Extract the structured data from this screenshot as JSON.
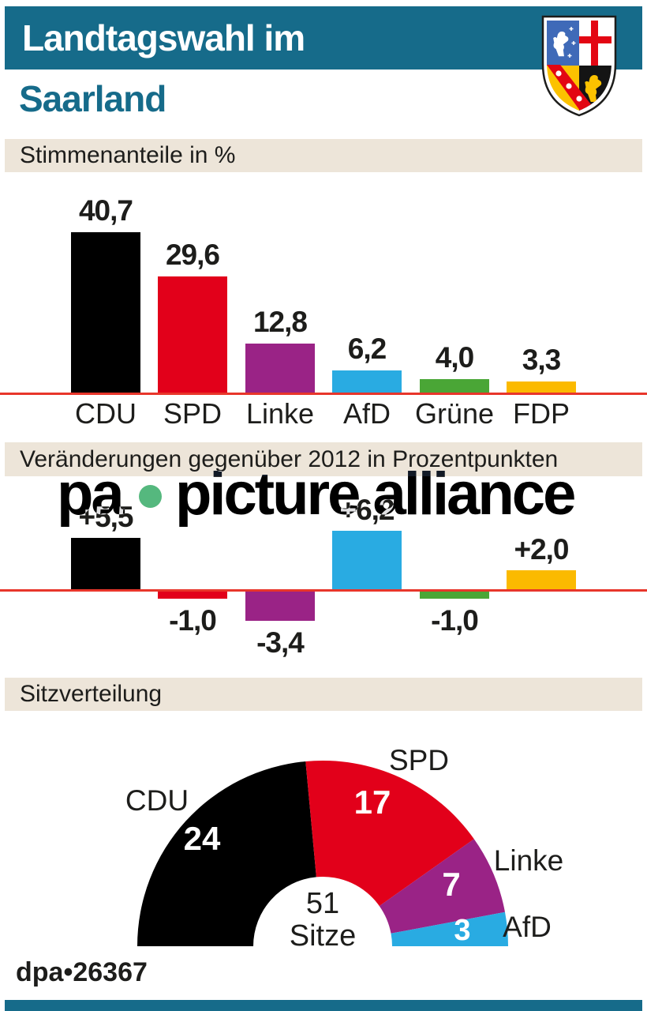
{
  "header": {
    "line1": "Landtagswahl im",
    "line2": "Saarland"
  },
  "sections": {
    "vote_share": "Stimmenanteile in %",
    "changes": "Veränderungen gegenüber 2012 in Prozentpunkten",
    "seats": "Sitzverteilung"
  },
  "parties": [
    "CDU",
    "SPD",
    "Linke",
    "AfD",
    "Grüne",
    "FDP"
  ],
  "party_colors": [
    "#000000",
    "#e2001a",
    "#9a2386",
    "#29abe2",
    "#4aa636",
    "#fbba00"
  ],
  "chart_data": [
    {
      "type": "bar",
      "title": "Stimmenanteile in %",
      "categories": [
        "CDU",
        "SPD",
        "Linke",
        "AfD",
        "Grüne",
        "FDP"
      ],
      "values": [
        40.7,
        29.6,
        12.8,
        6.2,
        4.0,
        3.3
      ],
      "value_labels": [
        "40,7",
        "29,6",
        "12,8",
        "6,2",
        "4,0",
        "3,3"
      ],
      "colors": [
        "#000000",
        "#e2001a",
        "#9a2386",
        "#29abe2",
        "#4aa636",
        "#fbba00"
      ],
      "baseline_color": "#e8362b",
      "ylim": [
        0,
        41
      ],
      "grid": false
    },
    {
      "type": "bar",
      "title": "Veränderungen gegenüber 2012 in Prozentpunkten",
      "categories": [
        "CDU",
        "SPD",
        "Linke",
        "AfD",
        "Grüne",
        "FDP"
      ],
      "values": [
        5.5,
        -1.0,
        -3.4,
        6.2,
        -1.0,
        2.0
      ],
      "value_labels": [
        "+5,5",
        "-1,0",
        "-3,4",
        "+6,2",
        "-1,0",
        "+2,0"
      ],
      "colors": [
        "#000000",
        "#e2001a",
        "#9a2386",
        "#29abe2",
        "#4aa636",
        "#fbba00"
      ],
      "baseline_color": "#e8362b",
      "ylim": [
        -4,
        7
      ],
      "grid": false
    },
    {
      "type": "pie",
      "variant": "half-donut",
      "title": "Sitzverteilung",
      "categories": [
        "CDU",
        "SPD",
        "Linke",
        "AfD"
      ],
      "values": [
        24,
        17,
        7,
        3
      ],
      "colors": [
        "#000000",
        "#e2001a",
        "#9a2386",
        "#29abe2"
      ],
      "total": 51,
      "center_label": [
        "51",
        "Sitze"
      ]
    }
  ],
  "watermark": {
    "prefix": "pa",
    "name": "picture alliance",
    "dot_color": "#55b87e"
  },
  "footer": {
    "credit": "dpa•26367"
  },
  "colors": {
    "teal": "#166b8a",
    "beige": "#ede5d9",
    "baseline_red": "#e8362b",
    "text": "#1d1d1b",
    "white": "#ffffff"
  }
}
